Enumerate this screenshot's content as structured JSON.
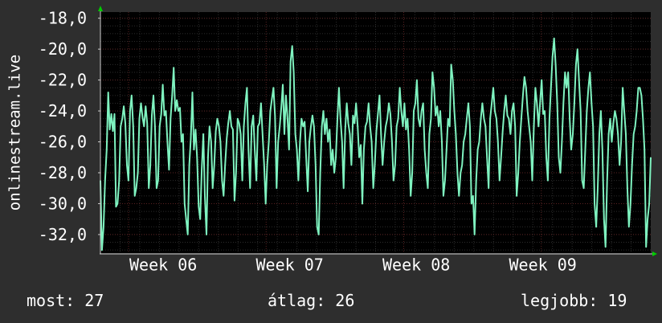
{
  "chart_data": {
    "type": "line",
    "ylabel": "onlinestream.live",
    "ylim": [
      -33.2,
      -17.6
    ],
    "yticks": [
      -18,
      -20,
      -22,
      -24,
      -26,
      -28,
      -30,
      -32
    ],
    "ytick_labels": [
      "-18,0",
      "-20,0",
      "-22,0",
      "-24,0",
      "-26,0",
      "-28,0",
      "-30,0",
      "-32,0"
    ],
    "xticks": [
      {
        "label": "Week 06"
      },
      {
        "label": "Week 07"
      },
      {
        "label": "Week 08"
      },
      {
        "label": "Week 09"
      }
    ],
    "series": [
      {
        "color": "#7ff3c0",
        "values": [
          -28.5,
          -33.0,
          -31.5,
          -28.5,
          -26.5,
          -22.8,
          -25.2,
          -24.2,
          -25.3,
          -24.2,
          -30.2,
          -30.0,
          -28.5,
          -25.0,
          -24.5,
          -23.7,
          -24.8,
          -27.5,
          -28.5,
          -24.0,
          -23.0,
          -25.0,
          -29.5,
          -29.0,
          -28.0,
          -24.5,
          -23.5,
          -24.4,
          -25.0,
          -23.7,
          -24.8,
          -29.0,
          -27.5,
          -24.3,
          -23.0,
          -25.0,
          -29.0,
          -28.5,
          -25.0,
          -24.2,
          -22.3,
          -24.3,
          -24.0,
          -26.0,
          -27.8,
          -24.5,
          -23.0,
          -21.2,
          -24.0,
          -23.3,
          -24.0,
          -23.8,
          -26.0,
          -25.5,
          -30.0,
          -31.0,
          -32.0,
          -27.5,
          -25.8,
          -22.8,
          -26.5,
          -25.2,
          -27.0,
          -30.2,
          -31.0,
          -27.8,
          -25.5,
          -29.5,
          -32.0,
          -27.0,
          -25.0,
          -26.0,
          -29.0,
          -27.5,
          -25.3,
          -24.5,
          -25.0,
          -26.0,
          -28.5,
          -29.5,
          -27.5,
          -25.8,
          -24.8,
          -24.0,
          -25.0,
          -25.2,
          -29.8,
          -28.0,
          -24.5,
          -24.8,
          -25.5,
          -28.5,
          -25.0,
          -23.5,
          -22.5,
          -26.5,
          -29.0,
          -25.0,
          -24.3,
          -26.5,
          -28.5,
          -25.0,
          -24.8,
          -23.5,
          -25.5,
          -27.5,
          -30.0,
          -27.5,
          -26.0,
          -24.0,
          -23.2,
          -22.5,
          -24.3,
          -29.0,
          -26.0,
          -25.0,
          -23.8,
          -22.3,
          -25.5,
          -23.0,
          -24.5,
          -26.5,
          -20.8,
          -19.8,
          -21.5,
          -25.5,
          -26.5,
          -28.5,
          -26.0,
          -24.5,
          -25.0,
          -24.7,
          -27.0,
          -29.2,
          -26.0,
          -25.0,
          -24.3,
          -25.0,
          -27.5,
          -31.5,
          -32.0,
          -28.0,
          -25.0,
          -24.0,
          -25.5,
          -24.5,
          -26.0,
          -25.2,
          -27.5,
          -26.5,
          -28.0,
          -27.0,
          -24.5,
          -22.5,
          -24.5,
          -26.0,
          -29.0,
          -25.2,
          -23.5,
          -24.8,
          -25.5,
          -27.5,
          -24.3,
          -24.8,
          -23.5,
          -25.0,
          -27.0,
          -26.2,
          -30.0,
          -26.5,
          -25.0,
          -24.7,
          -23.5,
          -25.0,
          -26.0,
          -29.0,
          -27.5,
          -25.3,
          -24.2,
          -23.0,
          -25.5,
          -27.5,
          -26.0,
          -25.0,
          -24.5,
          -23.5,
          -24.2,
          -26.0,
          -28.5,
          -27.5,
          -25.0,
          -24.5,
          -22.5,
          -24.0,
          -25.0,
          -23.5,
          -25.2,
          -24.5,
          -26.5,
          -29.5,
          -28.0,
          -24.0,
          -23.5,
          -22.0,
          -24.5,
          -25.0,
          -24.0,
          -23.5,
          -26.5,
          -28.0,
          -29.0,
          -25.5,
          -24.5,
          -21.5,
          -22.5,
          -24.3,
          -23.7,
          -25.0,
          -24.0,
          -26.0,
          -29.5,
          -28.5,
          -26.5,
          -24.5,
          -25.0,
          -21.0,
          -22.0,
          -24.0,
          -25.5,
          -28.0,
          -29.5,
          -28.0,
          -27.5,
          -26.0,
          -25.5,
          -24.5,
          -23.5,
          -25.0,
          -30.0,
          -29.5,
          -32.0,
          -28.5,
          -26.5,
          -26.0,
          -24.5,
          -23.5,
          -24.5,
          -25.0,
          -27.0,
          -29.0,
          -24.5,
          -23.5,
          -22.5,
          -24.0,
          -24.5,
          -26.0,
          -28.5,
          -27.0,
          -25.3,
          -24.0,
          -23.0,
          -24.3,
          -24.5,
          -25.5,
          -24.0,
          -23.5,
          -25.0,
          -29.5,
          -28.0,
          -26.0,
          -24.5,
          -23.0,
          -21.8,
          -22.5,
          -24.0,
          -25.0,
          -26.0,
          -28.5,
          -25.0,
          -22.5,
          -23.5,
          -25.0,
          -23.5,
          -22.0,
          -24.2,
          -24.0,
          -27.0,
          -28.5,
          -24.5,
          -22.5,
          -20.5,
          -19.3,
          -21.0,
          -23.5,
          -27.0,
          -28.0,
          -26.0,
          -23.5,
          -21.5,
          -22.5,
          -21.5,
          -24.5,
          -26.5,
          -25.5,
          -23.5,
          -21.0,
          -20.0,
          -22.0,
          -24.0,
          -28.5,
          -29.0,
          -26.5,
          -24.0,
          -22.5,
          -21.5,
          -23.5,
          -25.0,
          -30.0,
          -31.5,
          -29.0,
          -25.5,
          -24.0,
          -26.5,
          -31.0,
          -32.8,
          -28.5,
          -25.5,
          -24.5,
          -26.0,
          -24.8,
          -24.0,
          -24.5,
          -25.5,
          -27.5,
          -26.0,
          -22.5,
          -24.0,
          -25.5,
          -29.0,
          -31.5,
          -30.0,
          -27.5,
          -25.5,
          -25.0,
          -24.0,
          -22.5,
          -22.5,
          -23.0,
          -24.5,
          -26.5,
          -32.8,
          -31.0,
          -30.0,
          -27.0
        ]
      }
    ]
  },
  "footer": {
    "current": "most: 27",
    "average": "átlag: 26",
    "max": "legjobb: 19"
  },
  "colors": {
    "background": "#2e2e2e",
    "plot_background": "#000000",
    "grid_minor": "#2c2c2c",
    "grid_major": "#5a2222",
    "line": "#7ff3c0",
    "axis": "#cccccc",
    "arrow": "#00cc00"
  }
}
